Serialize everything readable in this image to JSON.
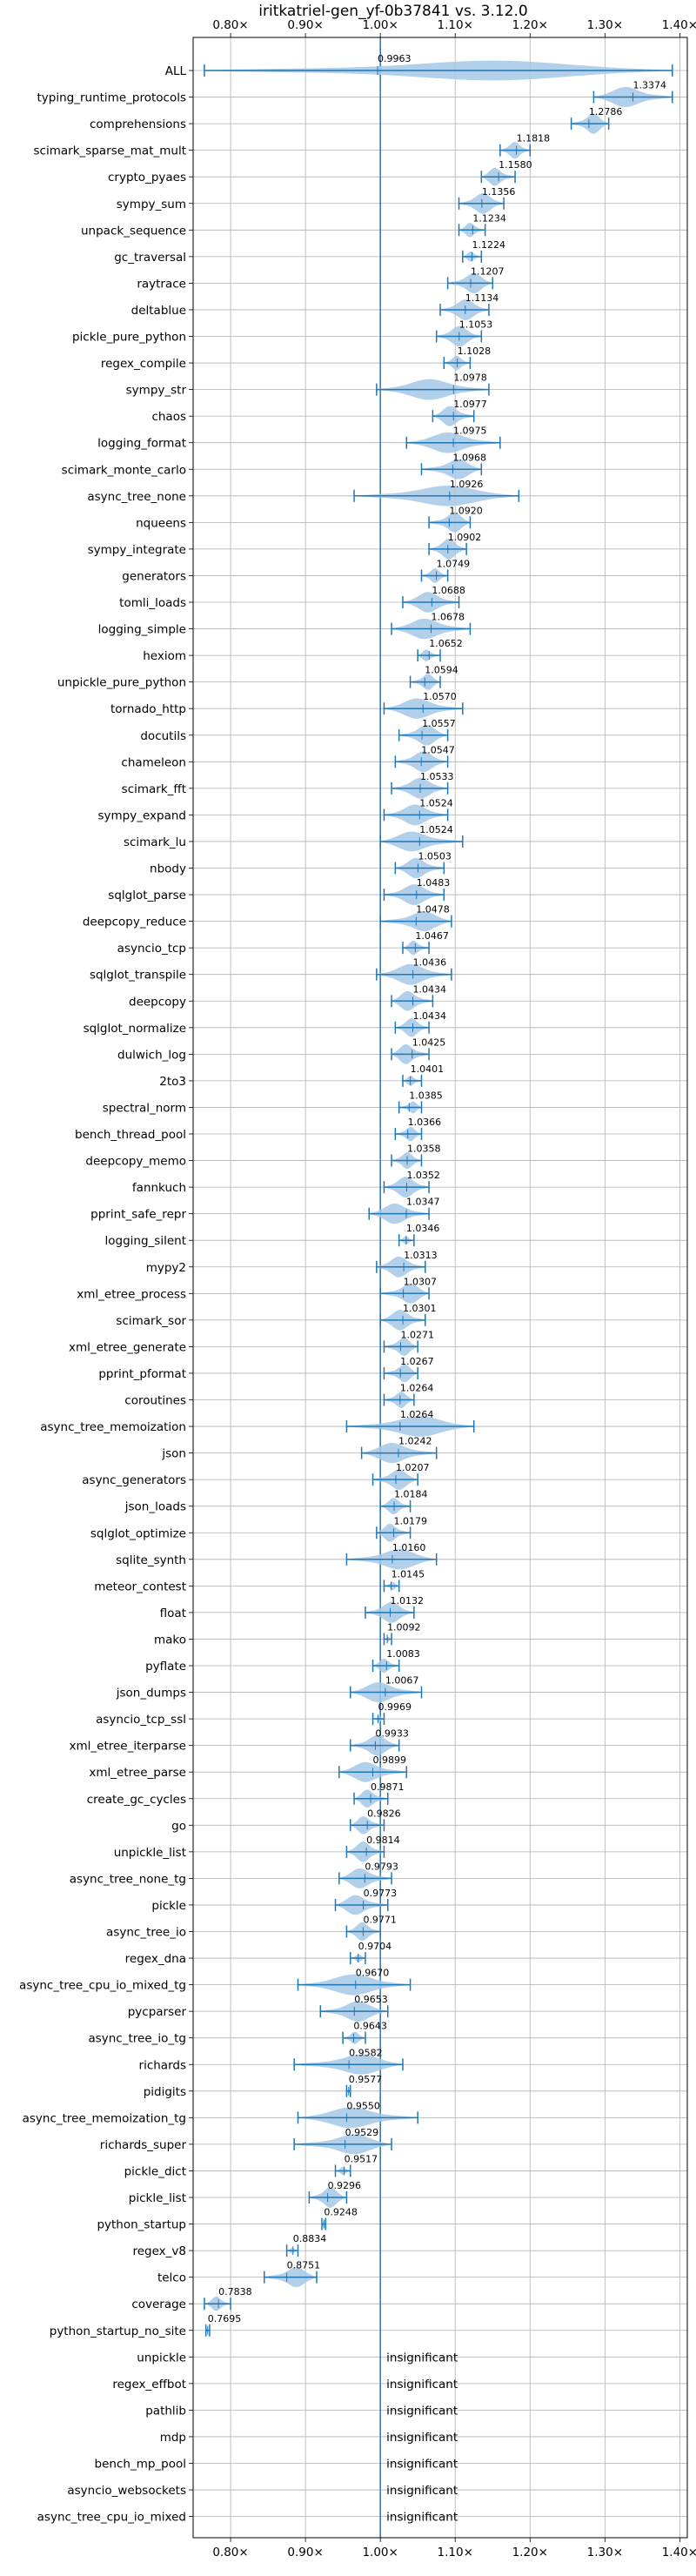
{
  "chart_data": {
    "type": "violin",
    "title": "iritkatriel-gen_yf-0b37841 vs. 3.12.0",
    "xlim": [
      0.75,
      1.41
    ],
    "xticks": [
      0.8,
      0.9,
      1.0,
      1.1,
      1.2,
      1.3,
      1.4
    ],
    "xtick_labels": [
      "0.80×",
      "0.90×",
      "1.00×",
      "1.10×",
      "1.20×",
      "1.30×",
      "1.40×"
    ],
    "reference_line": 1.0,
    "grid": true,
    "color": "#1f77b4",
    "fill_color": "#a6c8e8",
    "insignificant_label": "insignificant",
    "benchmarks": [
      {
        "name": "ALL",
        "value": 0.9963,
        "label": "0.9963",
        "min": 0.765,
        "max": 1.39
      },
      {
        "name": "typing_runtime_protocols",
        "value": 1.3374,
        "label": "1.3374",
        "min": 1.285,
        "max": 1.39
      },
      {
        "name": "comprehensions",
        "value": 1.2786,
        "label": "1.2786",
        "min": 1.255,
        "max": 1.305
      },
      {
        "name": "scimark_sparse_mat_mult",
        "value": 1.1818,
        "label": "1.1818",
        "min": 1.16,
        "max": 1.2
      },
      {
        "name": "crypto_pyaes",
        "value": 1.158,
        "label": "1.1580",
        "min": 1.135,
        "max": 1.18
      },
      {
        "name": "sympy_sum",
        "value": 1.1356,
        "label": "1.1356",
        "min": 1.105,
        "max": 1.165
      },
      {
        "name": "unpack_sequence",
        "value": 1.1234,
        "label": "1.1234",
        "min": 1.105,
        "max": 1.14
      },
      {
        "name": "gc_traversal",
        "value": 1.1224,
        "label": "1.1224",
        "min": 1.11,
        "max": 1.135
      },
      {
        "name": "raytrace",
        "value": 1.1207,
        "label": "1.1207",
        "min": 1.09,
        "max": 1.15
      },
      {
        "name": "deltablue",
        "value": 1.1134,
        "label": "1.1134",
        "min": 1.08,
        "max": 1.145
      },
      {
        "name": "pickle_pure_python",
        "value": 1.1053,
        "label": "1.1053",
        "min": 1.075,
        "max": 1.135
      },
      {
        "name": "regex_compile",
        "value": 1.1028,
        "label": "1.1028",
        "min": 1.085,
        "max": 1.12
      },
      {
        "name": "sympy_str",
        "value": 1.0978,
        "label": "1.0978",
        "min": 0.995,
        "max": 1.145
      },
      {
        "name": "chaos",
        "value": 1.0977,
        "label": "1.0977",
        "min": 1.07,
        "max": 1.125
      },
      {
        "name": "logging_format",
        "value": 1.0975,
        "label": "1.0975",
        "min": 1.035,
        "max": 1.16
      },
      {
        "name": "scimark_monte_carlo",
        "value": 1.0968,
        "label": "1.0968",
        "min": 1.055,
        "max": 1.135
      },
      {
        "name": "async_tree_none",
        "value": 1.0926,
        "label": "1.0926",
        "min": 0.965,
        "max": 1.185
      },
      {
        "name": "nqueens",
        "value": 1.092,
        "label": "1.0920",
        "min": 1.065,
        "max": 1.12
      },
      {
        "name": "sympy_integrate",
        "value": 1.0902,
        "label": "1.0902",
        "min": 1.065,
        "max": 1.115
      },
      {
        "name": "generators",
        "value": 1.0749,
        "label": "1.0749",
        "min": 1.055,
        "max": 1.09
      },
      {
        "name": "tomli_loads",
        "value": 1.0688,
        "label": "1.0688",
        "min": 1.03,
        "max": 1.105
      },
      {
        "name": "logging_simple",
        "value": 1.0678,
        "label": "1.0678",
        "min": 1.015,
        "max": 1.12
      },
      {
        "name": "hexiom",
        "value": 1.0652,
        "label": "1.0652",
        "min": 1.05,
        "max": 1.08
      },
      {
        "name": "unpickle_pure_python",
        "value": 1.0594,
        "label": "1.0594",
        "min": 1.04,
        "max": 1.08
      },
      {
        "name": "tornado_http",
        "value": 1.057,
        "label": "1.0570",
        "min": 1.005,
        "max": 1.11
      },
      {
        "name": "docutils",
        "value": 1.0557,
        "label": "1.0557",
        "min": 1.025,
        "max": 1.09
      },
      {
        "name": "chameleon",
        "value": 1.0547,
        "label": "1.0547",
        "min": 1.02,
        "max": 1.09
      },
      {
        "name": "scimark_fft",
        "value": 1.0533,
        "label": "1.0533",
        "min": 1.015,
        "max": 1.09
      },
      {
        "name": "sympy_expand",
        "value": 1.0524,
        "label": "1.0524",
        "min": 1.005,
        "max": 1.09
      },
      {
        "name": "scimark_lu",
        "value": 1.0524,
        "label": "1.0524",
        "min": 1.0,
        "max": 1.11
      },
      {
        "name": "nbody",
        "value": 1.0503,
        "label": "1.0503",
        "min": 1.02,
        "max": 1.085
      },
      {
        "name": "sqlglot_parse",
        "value": 1.0483,
        "label": "1.0483",
        "min": 1.005,
        "max": 1.085
      },
      {
        "name": "deepcopy_reduce",
        "value": 1.0478,
        "label": "1.0478",
        "min": 1.0,
        "max": 1.095
      },
      {
        "name": "asyncio_tcp",
        "value": 1.0467,
        "label": "1.0467",
        "min": 1.03,
        "max": 1.065
      },
      {
        "name": "sqlglot_transpile",
        "value": 1.0436,
        "label": "1.0436",
        "min": 0.995,
        "max": 1.095
      },
      {
        "name": "deepcopy",
        "value": 1.0434,
        "label": "1.0434",
        "min": 1.015,
        "max": 1.07
      },
      {
        "name": "sqlglot_normalize",
        "value": 1.0434,
        "label": "1.0434",
        "min": 1.02,
        "max": 1.065
      },
      {
        "name": "dulwich_log",
        "value": 1.0425,
        "label": "1.0425",
        "min": 1.015,
        "max": 1.065
      },
      {
        "name": "2to3",
        "value": 1.0401,
        "label": "1.0401",
        "min": 1.03,
        "max": 1.055
      },
      {
        "name": "spectral_norm",
        "value": 1.0385,
        "label": "1.0385",
        "min": 1.025,
        "max": 1.055
      },
      {
        "name": "bench_thread_pool",
        "value": 1.0366,
        "label": "1.0366",
        "min": 1.02,
        "max": 1.055
      },
      {
        "name": "deepcopy_memo",
        "value": 1.0358,
        "label": "1.0358",
        "min": 1.015,
        "max": 1.055
      },
      {
        "name": "fannkuch",
        "value": 1.0352,
        "label": "1.0352",
        "min": 1.005,
        "max": 1.065
      },
      {
        "name": "pprint_safe_repr",
        "value": 1.0347,
        "label": "1.0347",
        "min": 0.985,
        "max": 1.065
      },
      {
        "name": "logging_silent",
        "value": 1.0346,
        "label": "1.0346",
        "min": 1.025,
        "max": 1.045
      },
      {
        "name": "mypy2",
        "value": 1.0313,
        "label": "1.0313",
        "min": 0.995,
        "max": 1.06
      },
      {
        "name": "xml_etree_process",
        "value": 1.0307,
        "label": "1.0307",
        "min": 1.0,
        "max": 1.065
      },
      {
        "name": "scimark_sor",
        "value": 1.0301,
        "label": "1.0301",
        "min": 1.0,
        "max": 1.06
      },
      {
        "name": "xml_etree_generate",
        "value": 1.0271,
        "label": "1.0271",
        "min": 1.005,
        "max": 1.05
      },
      {
        "name": "pprint_pformat",
        "value": 1.0267,
        "label": "1.0267",
        "min": 1.005,
        "max": 1.05
      },
      {
        "name": "coroutines",
        "value": 1.0264,
        "label": "1.0264",
        "min": 1.005,
        "max": 1.045
      },
      {
        "name": "async_tree_memoization",
        "value": 1.0264,
        "label": "1.0264",
        "min": 0.955,
        "max": 1.125
      },
      {
        "name": "json",
        "value": 1.0242,
        "label": "1.0242",
        "min": 0.975,
        "max": 1.075
      },
      {
        "name": "async_generators",
        "value": 1.0207,
        "label": "1.0207",
        "min": 0.99,
        "max": 1.05
      },
      {
        "name": "json_loads",
        "value": 1.0184,
        "label": "1.0184",
        "min": 1.0,
        "max": 1.04
      },
      {
        "name": "sqlglot_optimize",
        "value": 1.0179,
        "label": "1.0179",
        "min": 0.995,
        "max": 1.04
      },
      {
        "name": "sqlite_synth",
        "value": 1.016,
        "label": "1.0160",
        "min": 0.955,
        "max": 1.075
      },
      {
        "name": "meteor_contest",
        "value": 1.0145,
        "label": "1.0145",
        "min": 1.005,
        "max": 1.025
      },
      {
        "name": "float",
        "value": 1.0132,
        "label": "1.0132",
        "min": 0.98,
        "max": 1.045
      },
      {
        "name": "mako",
        "value": 1.0092,
        "label": "1.0092",
        "min": 1.005,
        "max": 1.015
      },
      {
        "name": "pyflate",
        "value": 1.0083,
        "label": "1.0083",
        "min": 0.99,
        "max": 1.025
      },
      {
        "name": "json_dumps",
        "value": 1.0067,
        "label": "1.0067",
        "min": 0.96,
        "max": 1.055
      },
      {
        "name": "asyncio_tcp_ssl",
        "value": 0.9969,
        "label": "0.9969",
        "min": 0.99,
        "max": 1.005
      },
      {
        "name": "xml_etree_iterparse",
        "value": 0.9933,
        "label": "0.9933",
        "min": 0.96,
        "max": 1.025
      },
      {
        "name": "xml_etree_parse",
        "value": 0.9899,
        "label": "0.9899",
        "min": 0.945,
        "max": 1.035
      },
      {
        "name": "create_gc_cycles",
        "value": 0.9871,
        "label": "0.9871",
        "min": 0.965,
        "max": 1.01
      },
      {
        "name": "go",
        "value": 0.9826,
        "label": "0.9826",
        "min": 0.96,
        "max": 1.005
      },
      {
        "name": "unpickle_list",
        "value": 0.9814,
        "label": "0.9814",
        "min": 0.955,
        "max": 1.005
      },
      {
        "name": "async_tree_none_tg",
        "value": 0.9793,
        "label": "0.9793",
        "min": 0.945,
        "max": 1.015
      },
      {
        "name": "pickle",
        "value": 0.9773,
        "label": "0.9773",
        "min": 0.94,
        "max": 1.01
      },
      {
        "name": "async_tree_io",
        "value": 0.9771,
        "label": "0.9771",
        "min": 0.955,
        "max": 1.0
      },
      {
        "name": "regex_dna",
        "value": 0.9704,
        "label": "0.9704",
        "min": 0.96,
        "max": 0.98
      },
      {
        "name": "async_tree_cpu_io_mixed_tg",
        "value": 0.967,
        "label": "0.9670",
        "min": 0.89,
        "max": 1.04
      },
      {
        "name": "pycparser",
        "value": 0.9653,
        "label": "0.9653",
        "min": 0.92,
        "max": 1.01
      },
      {
        "name": "async_tree_io_tg",
        "value": 0.9643,
        "label": "0.9643",
        "min": 0.95,
        "max": 0.98
      },
      {
        "name": "richards",
        "value": 0.9582,
        "label": "0.9582",
        "min": 0.885,
        "max": 1.03
      },
      {
        "name": "pidigits",
        "value": 0.9577,
        "label": "0.9577",
        "min": 0.955,
        "max": 0.96
      },
      {
        "name": "async_tree_memoization_tg",
        "value": 0.955,
        "label": "0.9550",
        "min": 0.89,
        "max": 1.05
      },
      {
        "name": "richards_super",
        "value": 0.9529,
        "label": "0.9529",
        "min": 0.885,
        "max": 1.015
      },
      {
        "name": "pickle_dict",
        "value": 0.9517,
        "label": "0.9517",
        "min": 0.94,
        "max": 0.96
      },
      {
        "name": "pickle_list",
        "value": 0.9296,
        "label": "0.9296",
        "min": 0.905,
        "max": 0.955
      },
      {
        "name": "python_startup",
        "value": 0.9248,
        "label": "0.9248",
        "min": 0.922,
        "max": 0.927
      },
      {
        "name": "regex_v8",
        "value": 0.8834,
        "label": "0.8834",
        "min": 0.875,
        "max": 0.89
      },
      {
        "name": "telco",
        "value": 0.8751,
        "label": "0.8751",
        "min": 0.845,
        "max": 0.915
      },
      {
        "name": "coverage",
        "value": 0.7838,
        "label": "0.7838",
        "min": 0.765,
        "max": 0.8
      },
      {
        "name": "python_startup_no_site",
        "value": 0.7695,
        "label": "0.7695",
        "min": 0.767,
        "max": 0.772
      },
      {
        "name": "unpickle",
        "insignificant": true
      },
      {
        "name": "regex_effbot",
        "insignificant": true
      },
      {
        "name": "pathlib",
        "insignificant": true
      },
      {
        "name": "mdp",
        "insignificant": true
      },
      {
        "name": "bench_mp_pool",
        "insignificant": true
      },
      {
        "name": "asyncio_websockets",
        "insignificant": true
      },
      {
        "name": "async_tree_cpu_io_mixed",
        "insignificant": true
      }
    ]
  }
}
